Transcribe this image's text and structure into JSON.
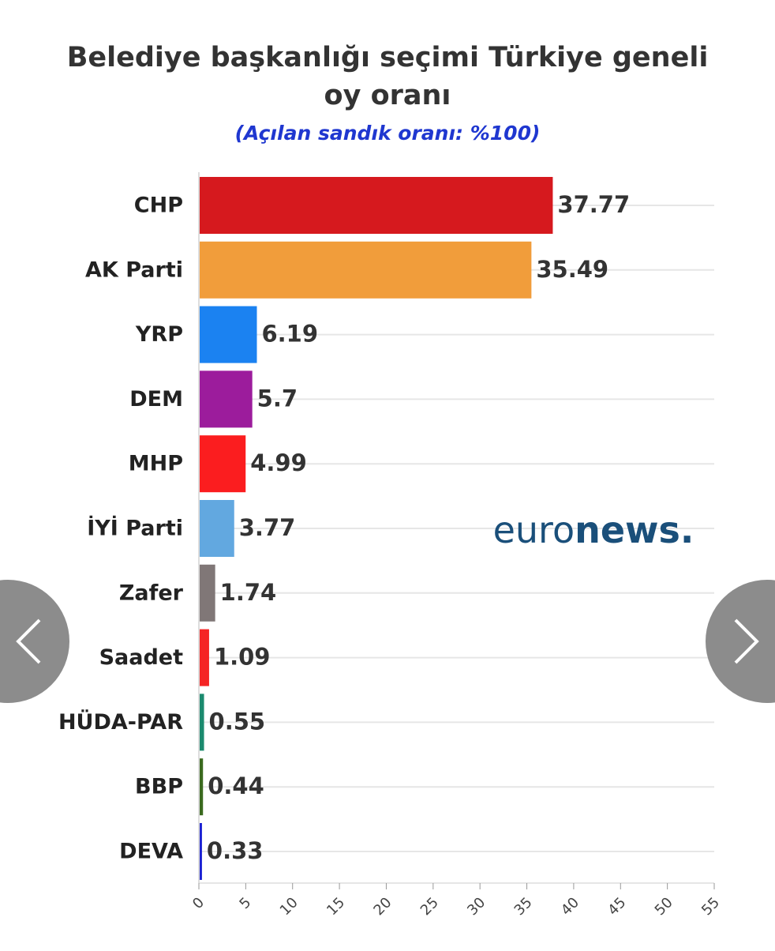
{
  "chart_data": {
    "type": "barh",
    "title": "Belediye başkanlığı seçimi Türkiye geneli",
    "title_line2": "oy oranı",
    "subtitle": "(Açılan sandık oranı: %100)",
    "categories": [
      "CHP",
      "AK Parti",
      "YRP",
      "DEM",
      "MHP",
      "İYİ Parti",
      "Zafer",
      "Saadet",
      "HÜDA-PAR",
      "BBP",
      "DEVA"
    ],
    "values": [
      37.77,
      35.49,
      6.19,
      5.7,
      4.99,
      3.77,
      1.74,
      1.09,
      0.55,
      0.44,
      0.33
    ],
    "colors": [
      "#d6191e",
      "#f19d3b",
      "#1b82f1",
      "#9c1c9c",
      "#fb1d1f",
      "#62a8e0",
      "#807777",
      "#f52424",
      "#1b8a6e",
      "#3b6a1f",
      "#1c22d2"
    ],
    "xlim": [
      0,
      55
    ],
    "xticks": [
      0,
      5,
      10,
      15,
      20,
      25,
      30,
      35,
      40,
      45,
      50,
      55
    ],
    "watermark": {
      "light": "euro",
      "bold": "news."
    }
  }
}
